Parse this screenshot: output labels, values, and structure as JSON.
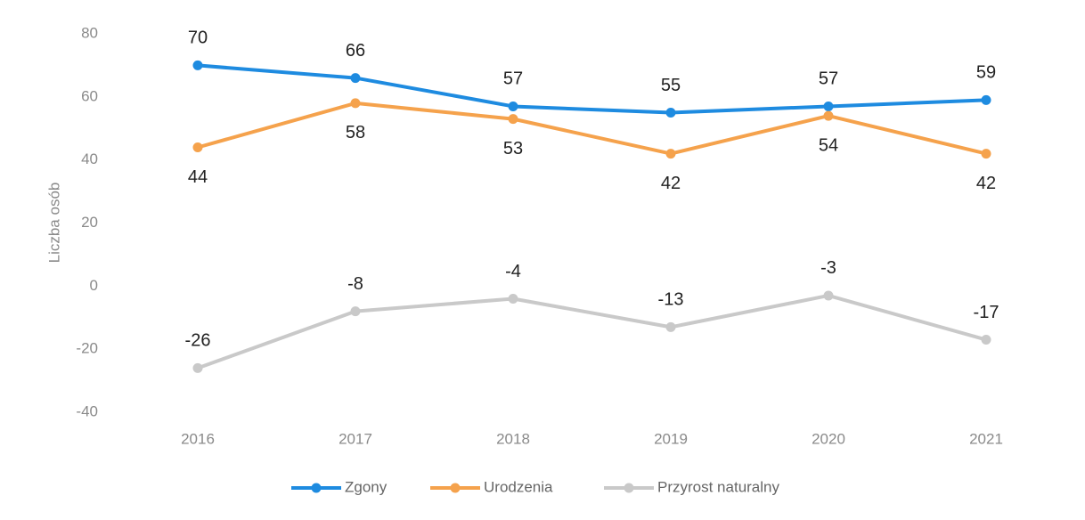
{
  "chart_data": {
    "type": "line",
    "y_label": "Liczba osób",
    "categories": [
      "2016",
      "2017",
      "2018",
      "2019",
      "2020",
      "2021"
    ],
    "series": [
      {
        "name": "Zgony",
        "color": "#1e8be0",
        "values": [
          70,
          66,
          57,
          55,
          57,
          59
        ]
      },
      {
        "name": "Urodzenia",
        "color": "#f5a24c",
        "values": [
          44,
          58,
          53,
          42,
          54,
          42
        ]
      },
      {
        "name": "Przyrost naturalny",
        "color": "#c9c9c9",
        "values": [
          -26,
          -8,
          -4,
          -13,
          -3,
          -17
        ]
      }
    ],
    "ylim": [
      -40,
      80
    ],
    "yticks": [
      -40,
      -20,
      0,
      20,
      40,
      60,
      80
    ],
    "grid": false,
    "legend": "bottom"
  }
}
